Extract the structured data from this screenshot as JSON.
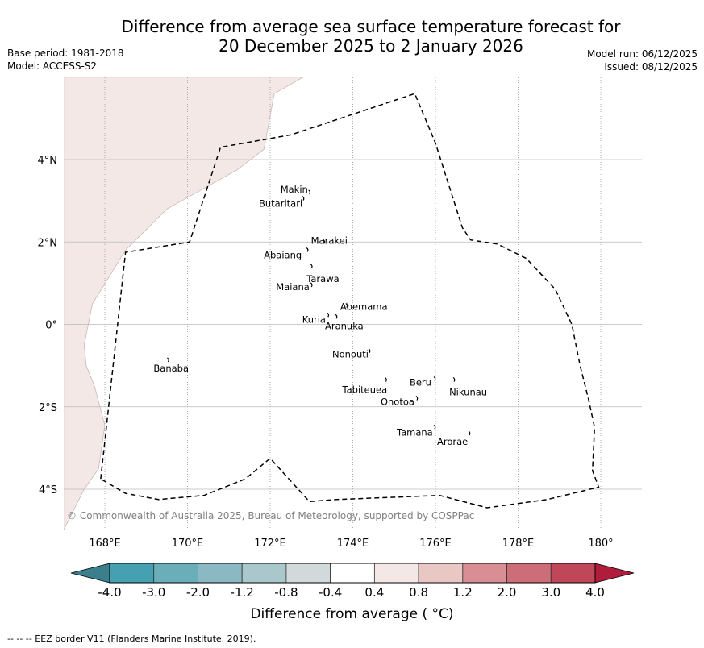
{
  "header": {
    "title_line1": "Difference from average sea surface temperature forecast for",
    "title_line2": "20 December 2025 to 2 January 2026",
    "base_period": "Base period: 1981-2018",
    "model": "Model: ACCESS-S2",
    "model_run": "Model run: 06/12/2025",
    "issued": "Issued: 08/12/2025"
  },
  "map": {
    "lon_ticks": [
      {
        "value": 168,
        "label": "168°E"
      },
      {
        "value": 170,
        "label": "170°E"
      },
      {
        "value": 172,
        "label": "172°E"
      },
      {
        "value": 174,
        "label": "174°E"
      },
      {
        "value": 176,
        "label": "176°E"
      },
      {
        "value": 178,
        "label": "178°E"
      },
      {
        "value": 180,
        "label": "180°"
      }
    ],
    "lat_ticks": [
      {
        "value": 4,
        "label": "4°N"
      },
      {
        "value": 2,
        "label": "2°N"
      },
      {
        "value": 0,
        "label": "0°"
      },
      {
        "value": -2,
        "label": "2°S"
      },
      {
        "value": -4,
        "label": "4°S"
      }
    ],
    "lon_range": [
      167,
      181
    ],
    "lat_range": [
      -5,
      6
    ],
    "anomaly_shading_color": "#f4e8e7",
    "copyright": "© Commonwealth of Australia 2025, Bureau of Meteorology, supported by COSPPac",
    "places": [
      {
        "name": "Makin",
        "lon": 172.95,
        "lat": 3.2
      },
      {
        "name": "Butaritari",
        "lon": 172.8,
        "lat": 3.05
      },
      {
        "name": "Marakei",
        "lon": 173.3,
        "lat": 2.0
      },
      {
        "name": "Abaiang",
        "lon": 172.9,
        "lat": 1.8
      },
      {
        "name": "Tarawa",
        "lon": 173.0,
        "lat": 1.4
      },
      {
        "name": "Maiana",
        "lon": 173.0,
        "lat": 0.95
      },
      {
        "name": "Abemama",
        "lon": 173.85,
        "lat": 0.45
      },
      {
        "name": "Kuria",
        "lon": 173.4,
        "lat": 0.22
      },
      {
        "name": "Aranuka",
        "lon": 173.6,
        "lat": 0.18
      },
      {
        "name": "Nonouti",
        "lon": 174.4,
        "lat": -0.65
      },
      {
        "name": "Tabiteuea",
        "lon": 174.8,
        "lat": -1.35
      },
      {
        "name": "Beru",
        "lon": 175.98,
        "lat": -1.33
      },
      {
        "name": "Nikunau",
        "lon": 176.45,
        "lat": -1.35
      },
      {
        "name": "Onotoa",
        "lon": 175.55,
        "lat": -1.8
      },
      {
        "name": "Tamana",
        "lon": 175.98,
        "lat": -2.5
      },
      {
        "name": "Arorae",
        "lon": 176.82,
        "lat": -2.65
      },
      {
        "name": "Banaba",
        "lon": 169.53,
        "lat": -0.87
      }
    ],
    "eez_border": [
      [
        167.9,
        -3.75
      ],
      [
        168.5,
        1.75
      ],
      [
        170.05,
        2.0
      ],
      [
        170.8,
        4.3
      ],
      [
        172.5,
        4.6
      ],
      [
        175.5,
        5.6
      ],
      [
        176.0,
        4.4
      ],
      [
        176.65,
        2.35
      ],
      [
        176.85,
        2.05
      ],
      [
        177.5,
        1.95
      ],
      [
        178.2,
        1.6
      ],
      [
        178.9,
        0.85
      ],
      [
        179.3,
        0.0
      ],
      [
        179.5,
        -1.0
      ],
      [
        179.7,
        -1.8
      ],
      [
        179.85,
        -2.5
      ],
      [
        179.8,
        -3.55
      ],
      [
        179.95,
        -3.95
      ],
      [
        178.7,
        -4.25
      ],
      [
        177.25,
        -4.45
      ],
      [
        176.1,
        -4.15
      ],
      [
        173.6,
        -4.25
      ],
      [
        172.95,
        -4.3
      ],
      [
        172.0,
        -3.25
      ],
      [
        171.4,
        -3.75
      ],
      [
        170.4,
        -4.15
      ],
      [
        169.3,
        -4.25
      ],
      [
        168.5,
        -4.1
      ],
      [
        167.9,
        -3.75
      ]
    ],
    "warm_region": [
      [
        167.0,
        6.0
      ],
      [
        172.8,
        6.0
      ],
      [
        172.1,
        5.6
      ],
      [
        171.85,
        4.25
      ],
      [
        171.2,
        3.75
      ],
      [
        169.5,
        2.8
      ],
      [
        168.5,
        1.8
      ],
      [
        167.7,
        0.5
      ],
      [
        167.5,
        -0.5
      ],
      [
        167.55,
        -1.0
      ],
      [
        167.75,
        -1.5
      ],
      [
        168.0,
        -2.45
      ],
      [
        167.85,
        -3.5
      ],
      [
        167.5,
        -4.0
      ],
      [
        167.0,
        -5.0
      ]
    ]
  },
  "colorbar": {
    "boundaries": [
      "-4.0",
      "-3.0",
      "-2.0",
      "-1.2",
      "-0.8",
      "-0.4",
      "0.4",
      "0.8",
      "1.2",
      "2.0",
      "3.0",
      "4.0"
    ],
    "under_color": "#3a7f8b",
    "over_color": "#b01d3c",
    "colors": [
      "#45a1b1",
      "#6aaeb9",
      "#8bb9c3",
      "#aac7cb",
      "#d2d9da",
      "#ffffff",
      "#f4e8e7",
      "#e9c8c4",
      "#d98e96",
      "#cc6d78",
      "#c04757"
    ],
    "label": "Difference from average ( °C)"
  },
  "footer": {
    "legend": "--  --  -- EEZ border V11 (Flanders Marine Institute, 2019)."
  }
}
